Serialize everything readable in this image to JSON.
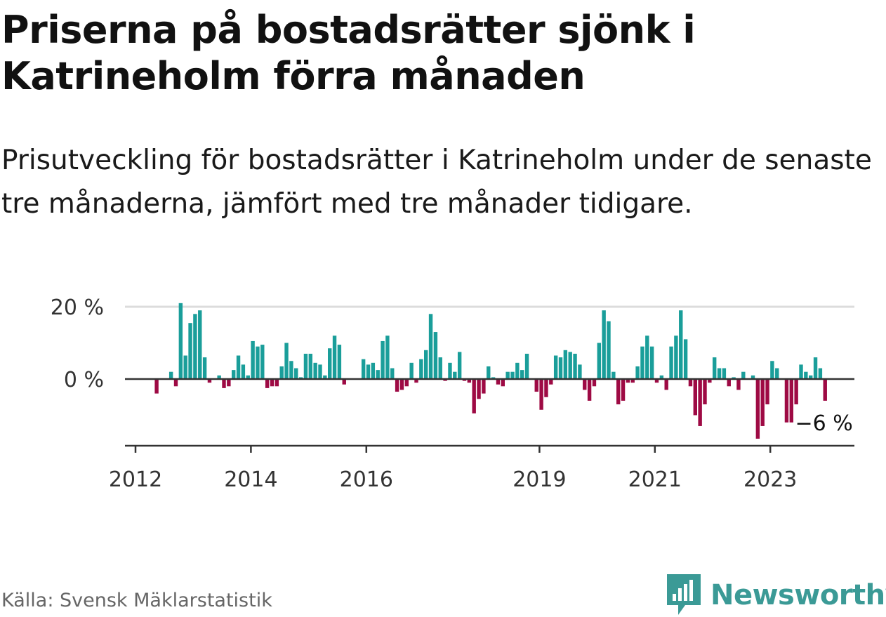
{
  "title": "Priserna på bostadsrätter sjönk i Katrineholm förra månaden",
  "subtitle": "Prisutveckling för bostadsrätter i Katrineholm under de senaste tre månaderna, jämfört med tre månader tidigare.",
  "source": "Källa: Svensk Mäklarstatistik",
  "brand": "Newsworthy",
  "colors": {
    "positive": "#1a9e9a",
    "negative": "#9e0a44",
    "brand": "#3b9a96"
  },
  "chart_data": {
    "type": "bar",
    "y_unit": "%",
    "ylim": [
      -17,
      21
    ],
    "y_ticks": [
      {
        "value": 20,
        "label": "20 %"
      },
      {
        "value": 0,
        "label": "0 %"
      }
    ],
    "x_ticks": [
      "2012",
      "2014",
      "2016",
      "2019",
      "2021",
      "2023"
    ],
    "annotation": "−6 %",
    "last_value": -6,
    "start_month": "2012-01",
    "end_month": "2023-12",
    "values": [
      0,
      0,
      0,
      0,
      -4,
      0,
      0,
      2,
      -2,
      21,
      6.5,
      15.5,
      18,
      19,
      6,
      -1,
      0,
      1,
      -2.5,
      -2,
      2.5,
      6.5,
      4,
      1,
      10.5,
      9,
      9.5,
      -2.5,
      -2,
      -2,
      3.5,
      10,
      5,
      3,
      0.5,
      7,
      7,
      4.5,
      4,
      1,
      8.5,
      12,
      9.5,
      -1.5,
      0,
      0,
      0,
      5.5,
      4,
      4.5,
      2.5,
      10.5,
      12,
      3,
      -3.5,
      -3,
      -2,
      4.5,
      -1,
      5.5,
      8,
      18,
      13,
      6,
      -0.5,
      4.5,
      2,
      7.5,
      -0.5,
      -1,
      -9.5,
      -5.5,
      -4,
      3.5,
      0.5,
      -1.5,
      -2,
      2,
      2,
      4.5,
      2.5,
      7,
      0,
      -3.5,
      -8.5,
      -5,
      -1.5,
      6.5,
      6,
      8,
      7.5,
      7,
      4,
      -3,
      -6,
      -2,
      10,
      19,
      16,
      2,
      -7,
      -6,
      -1,
      -1,
      3.5,
      9,
      12,
      9,
      -1,
      1,
      -3,
      9,
      12,
      19,
      11,
      -2,
      -10,
      -13,
      -7,
      -1,
      6,
      3,
      3,
      -2,
      0.5,
      -3,
      2,
      0,
      1,
      -16.5,
      -13,
      -7,
      5,
      3,
      0,
      -12,
      -12,
      -7,
      4,
      2,
      1,
      6,
      3,
      -6
    ]
  }
}
